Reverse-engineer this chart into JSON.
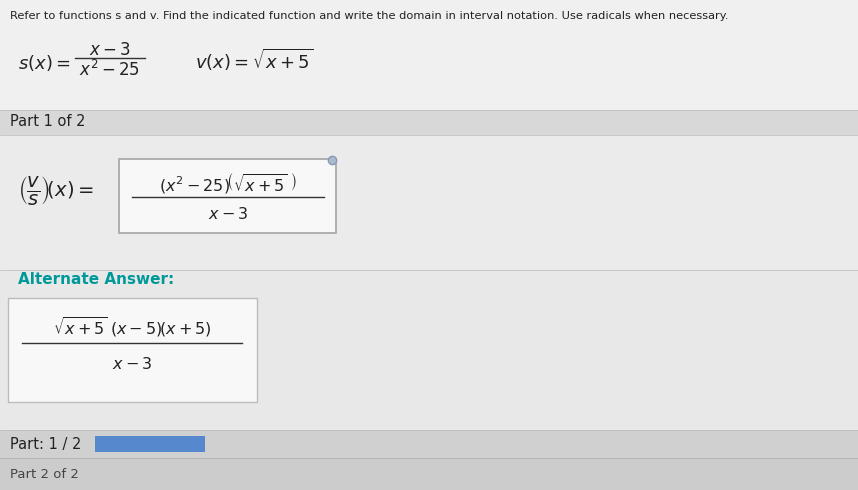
{
  "bg_outer": "#c8c8c8",
  "bg_main": "#e8e8e8",
  "bg_white": "#f0f0f0",
  "bg_header": "#eeeeee",
  "bg_part_bar": "#d8d8d8",
  "bg_answer_section": "#e0e0e0",
  "bg_alt_section": "#e4e4e4",
  "bg_footer": "#d0d0d0",
  "bg_answer_box": "#f8f8f8",
  "bg_alt_box": "#f8f8f8",
  "blue_bar": "#5588cc",
  "header_text": "Refer to functions s and v. Find the indicated function and write the domain in interval notation. Use radicals when necessary.",
  "part_label": "Part 1 of 2",
  "part_footer": "Part: 1 / 2",
  "part2_label": "Part 2 of 2",
  "alt_label": "Alternate Answer:",
  "alt_label_color": "#009999"
}
